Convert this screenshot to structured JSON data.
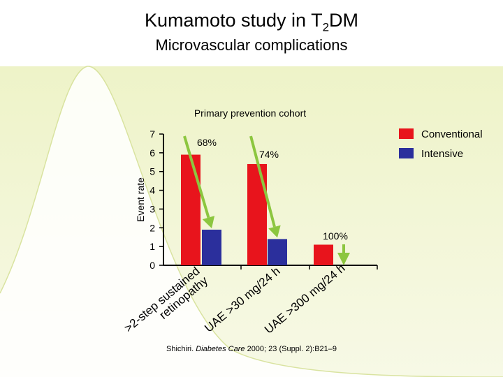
{
  "slide": {
    "title_main": "Kumamoto study in T",
    "title_sub": "2",
    "title_end": "DM",
    "subtitle": "Microvascular complications",
    "citation_prefix": "Shichiri. ",
    "citation_journal": "Diabetes Care",
    "citation_rest": " 2000; 23 (Suppl. 2):B21–9"
  },
  "colors": {
    "conventional": "#e8141c",
    "intensive": "#2b2f9c",
    "arrow": "#8cc63f",
    "background_band": "#eef2c9"
  },
  "chart_data": {
    "type": "bar",
    "title": "Primary prevention cohort",
    "ylabel": "Event rate",
    "ylim": [
      0,
      7
    ],
    "yticks": [
      "0",
      "1",
      "2",
      "3",
      "4",
      "5",
      "6",
      "7"
    ],
    "categories": [
      ">2-step sustained retinopathy",
      "UAE >30 mg/24 h",
      "UAE >300 mg/24 h"
    ],
    "category_label_lines": [
      [
        ">2-step sustained",
        "retinopathy"
      ],
      [
        "UAE >30 mg/24 h"
      ],
      [
        "UAE >300 mg/24 h"
      ]
    ],
    "series": [
      {
        "name": "Conventional",
        "values": [
          5.9,
          5.4,
          1.1
        ]
      },
      {
        "name": "Intensive",
        "values": [
          1.9,
          1.4,
          0.0
        ]
      }
    ],
    "reductions": [
      "68%",
      "74%",
      "100%"
    ],
    "legend_position": "top-right"
  }
}
